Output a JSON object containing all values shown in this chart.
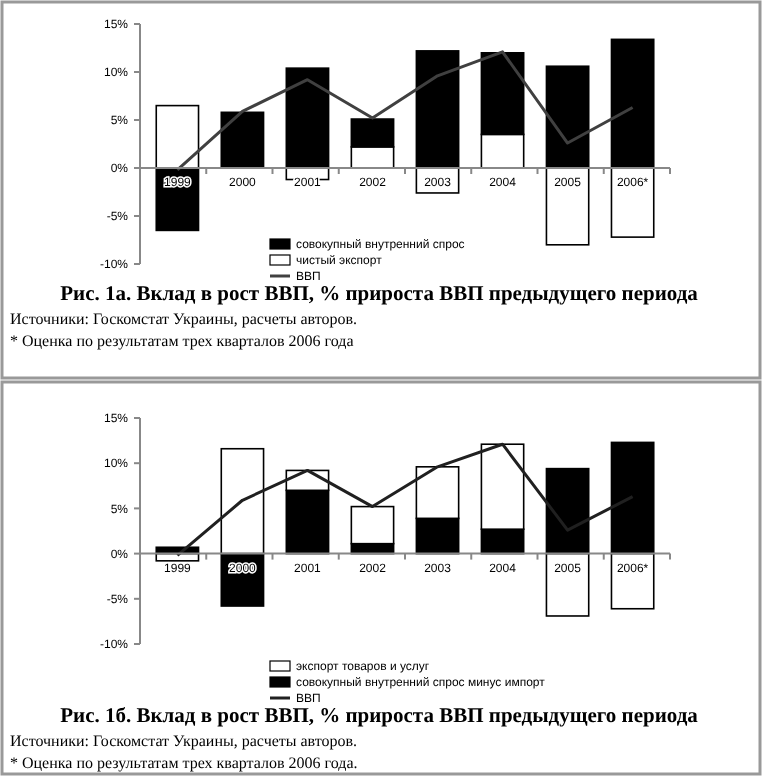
{
  "chart_data": [
    {
      "type": "bar",
      "stacked": true,
      "title": "Рис. 1а. Вклад в рост ВВП, % прироста ВВП предыдущего периода",
      "categories": [
        "1999",
        "2000",
        "2001",
        "2002",
        "2003",
        "2004",
        "2005",
        "2006*"
      ],
      "series": [
        {
          "name": "чистый экспорт",
          "color": "#ffffff",
          "values": [
            6.5,
            0,
            -1.2,
            2.2,
            -2.6,
            3.5,
            -8.0,
            -7.2
          ]
        },
        {
          "name": "совокупный внутренний спрос",
          "color": "#000000",
          "values": [
            -6.5,
            5.8,
            10.4,
            2.9,
            12.2,
            8.5,
            10.6,
            13.4
          ]
        },
        {
          "name": "ВВП",
          "type": "line",
          "color": "#404040",
          "values": [
            -0.2,
            5.9,
            9.2,
            5.2,
            9.6,
            12.1,
            2.6,
            6.3
          ]
        }
      ],
      "ylim": [
        -10,
        15
      ],
      "yticks": [
        {
          "value": -10,
          "label": "-10%"
        },
        {
          "value": -5,
          "label": "-5%"
        },
        {
          "value": 0,
          "label": "0%"
        },
        {
          "value": 5,
          "label": "5%"
        },
        {
          "value": 10,
          "label": "10%"
        },
        {
          "value": 15,
          "label": "15%"
        }
      ],
      "grid": false,
      "legend": "bottom",
      "marker": "none",
      "annotations": [
        "Источники: Госкомстат Украины, расчеты авторов.",
        "* Оценка по результатам трех кварталов 2006 года"
      ]
    },
    {
      "type": "bar",
      "stacked": true,
      "title": "Рис. 1б. Вклад в рост ВВП, % прироста ВВП предыдущего периода",
      "categories": [
        "1999",
        "2000",
        "2001",
        "2002",
        "2003",
        "2004",
        "2005",
        "2006*"
      ],
      "series": [
        {
          "name": "совокупный внутренний спрос минус импорт",
          "color": "#000000",
          "values": [
            0.7,
            -5.8,
            7.0,
            1.1,
            3.9,
            2.7,
            9.4,
            12.3
          ]
        },
        {
          "name": "экспорт товаров и услуг",
          "color": "#ffffff",
          "values": [
            -0.8,
            11.6,
            2.2,
            4.1,
            5.7,
            9.4,
            -6.9,
            -6.1
          ]
        },
        {
          "name": "ВВП",
          "type": "line",
          "color": "#202020",
          "values": [
            -0.2,
            5.9,
            9.2,
            5.2,
            9.6,
            12.1,
            2.6,
            6.3
          ]
        }
      ],
      "ylim": [
        -10,
        15
      ],
      "yticks": [
        {
          "value": -10,
          "label": "-10%"
        },
        {
          "value": -5,
          "label": "-5%"
        },
        {
          "value": 0,
          "label": "0%"
        },
        {
          "value": 5,
          "label": "5%"
        },
        {
          "value": 10,
          "label": "10%"
        },
        {
          "value": 15,
          "label": "15%"
        }
      ],
      "grid": false,
      "legend": "bottom",
      "marker": "none",
      "annotations": [
        "Источники: Госкомстат Украины, расчеты авторов.",
        "* Оценка по результатам трех кварталов 2006 года."
      ]
    }
  ]
}
